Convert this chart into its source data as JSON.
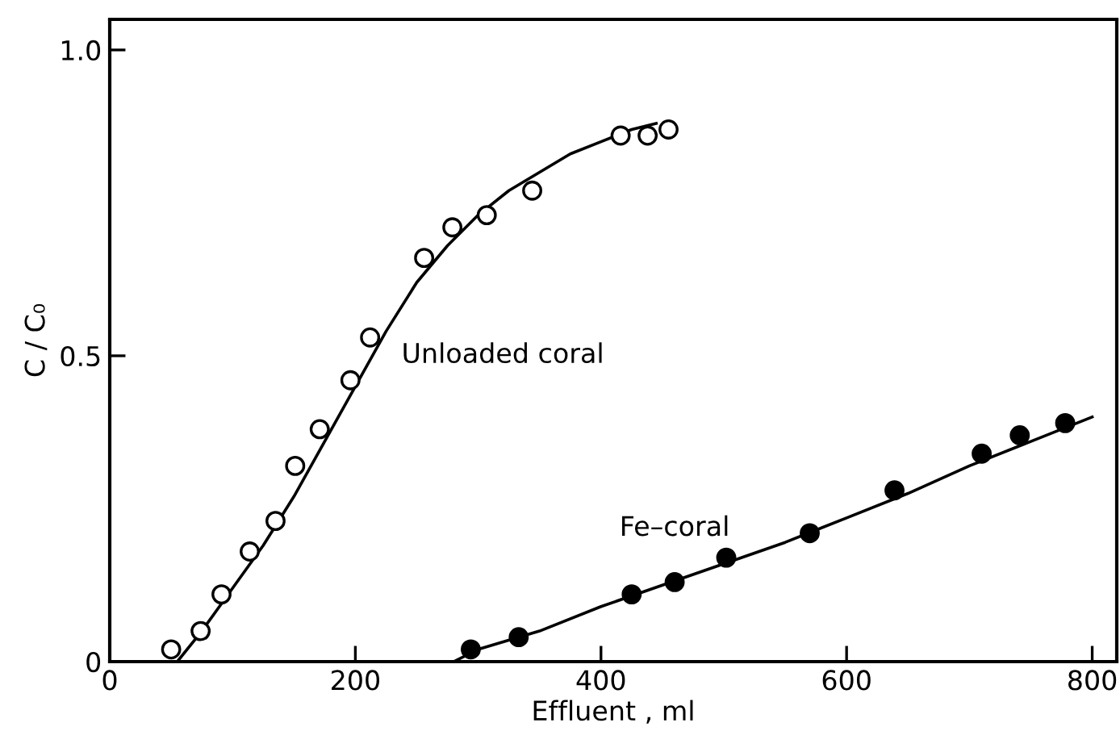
{
  "chart_data": {
    "type": "scatter",
    "xlabel": "Effluent , ml",
    "ylabel": "C / C₀",
    "xlim": [
      0,
      820
    ],
    "ylim": [
      0,
      1.05
    ],
    "xticks": [
      0,
      200,
      400,
      600,
      800
    ],
    "yticks": [
      0,
      0.5,
      {
        "value": 1.0,
        "label": "1.0"
      }
    ],
    "grid": false,
    "legend": false,
    "series": [
      {
        "name": "Unloaded coral",
        "marker": "circle",
        "color": "#ffffff",
        "x": [
          50,
          74,
          91,
          114,
          135,
          151,
          171,
          196,
          212,
          256,
          279,
          307,
          344,
          416,
          438,
          455
        ],
        "values": [
          0.02,
          0.05,
          0.11,
          0.18,
          0.23,
          0.32,
          0.38,
          0.46,
          0.53,
          0.66,
          0.71,
          0.73,
          0.77,
          0.86,
          0.86,
          0.87
        ]
      },
      {
        "name": "Fe–coral",
        "marker": "circle",
        "color": "#000000",
        "x": [
          294,
          333,
          425,
          460,
          502,
          570,
          639,
          710,
          741,
          778
        ],
        "values": [
          0.02,
          0.04,
          0.11,
          0.13,
          0.17,
          0.21,
          0.28,
          0.34,
          0.37,
          0.39
        ]
      },
      {
        "type": "line",
        "color": "#000000",
        "marker": "none",
        "x": [
          55,
          75,
          100,
          125,
          150,
          175,
          200,
          225,
          250,
          275,
          300,
          325,
          350,
          375,
          400,
          425,
          445
        ],
        "values": [
          0.0,
          0.05,
          0.12,
          0.19,
          0.27,
          0.36,
          0.45,
          0.54,
          0.62,
          0.68,
          0.73,
          0.77,
          0.8,
          0.83,
          0.85,
          0.87,
          0.88
        ]
      },
      {
        "type": "line",
        "color": "#000000",
        "marker": "none",
        "x": [
          280,
          300,
          350,
          400,
          450,
          500,
          550,
          600,
          650,
          700,
          750,
          800
        ],
        "values": [
          0.0,
          0.02,
          0.05,
          0.09,
          0.125,
          0.16,
          0.195,
          0.235,
          0.275,
          0.32,
          0.36,
          0.4
        ]
      }
    ]
  }
}
